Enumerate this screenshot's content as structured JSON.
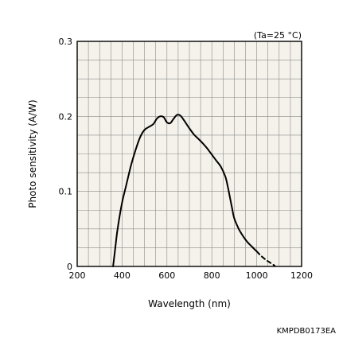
{
  "chart_data": {
    "type": "line",
    "title": "",
    "condition": "(Ta=25 °C)",
    "xlabel": "Wavelength (nm)",
    "ylabel": "Photo sensitivity (A/W)",
    "xlim": [
      200,
      1200
    ],
    "ylim": [
      0,
      0.3
    ],
    "x_ticks": [
      200,
      400,
      600,
      800,
      1000,
      1200
    ],
    "x_tick_labels": [
      "200",
      "400",
      "600",
      "800",
      "1000",
      "1200"
    ],
    "y_ticks": [
      0,
      0.1,
      0.2,
      0.3
    ],
    "y_tick_labels": [
      "0",
      "0.1",
      "0.2",
      "0.3"
    ],
    "x_minor_step": 100,
    "y_minor_step": 0.05,
    "grid": true,
    "background": "#f4f2ea",
    "series": [
      {
        "color": "#000000",
        "style": "solid",
        "points": [
          [
            360,
            0.0
          ],
          [
            370,
            0.025
          ],
          [
            380,
            0.05
          ],
          [
            400,
            0.085
          ],
          [
            420,
            0.11
          ],
          [
            440,
            0.135
          ],
          [
            460,
            0.155
          ],
          [
            480,
            0.172
          ],
          [
            500,
            0.182
          ],
          [
            520,
            0.186
          ],
          [
            540,
            0.19
          ],
          [
            555,
            0.197
          ],
          [
            570,
            0.2
          ],
          [
            585,
            0.199
          ],
          [
            600,
            0.192
          ],
          [
            615,
            0.191
          ],
          [
            630,
            0.197
          ],
          [
            645,
            0.202
          ],
          [
            660,
            0.201
          ],
          [
            680,
            0.193
          ],
          [
            700,
            0.184
          ],
          [
            720,
            0.176
          ],
          [
            740,
            0.17
          ],
          [
            760,
            0.164
          ],
          [
            780,
            0.157
          ],
          [
            800,
            0.149
          ],
          [
            820,
            0.141
          ],
          [
            840,
            0.133
          ],
          [
            860,
            0.12
          ],
          [
            870,
            0.108
          ],
          [
            880,
            0.093
          ],
          [
            890,
            0.078
          ],
          [
            900,
            0.064
          ],
          [
            920,
            0.05
          ],
          [
            940,
            0.04
          ],
          [
            960,
            0.032
          ],
          [
            980,
            0.026
          ],
          [
            1000,
            0.02
          ]
        ]
      },
      {
        "color": "#000000",
        "style": "dashed",
        "points": [
          [
            1000,
            0.02
          ],
          [
            1020,
            0.014
          ],
          [
            1040,
            0.009
          ],
          [
            1060,
            0.005
          ],
          [
            1080,
            0.001
          ]
        ]
      }
    ]
  },
  "catalog_code": "KMPDB0173EA"
}
